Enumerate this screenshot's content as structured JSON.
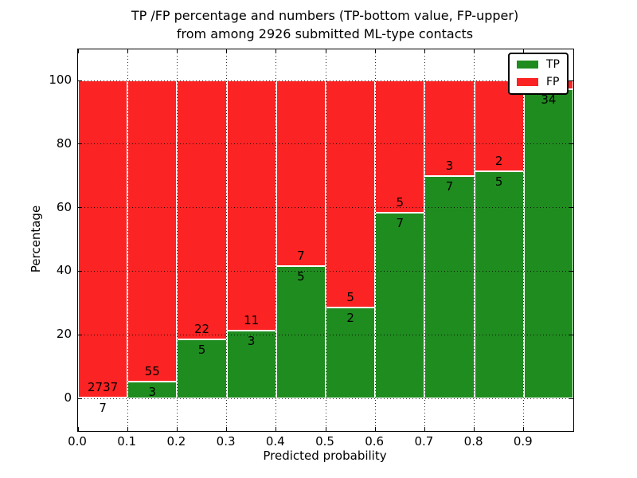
{
  "figure": {
    "title_line1": "TP /FP percentage and numbers (TP-bottom value, FP-upper)",
    "title_line2": "from among 2926 submitted ML-type contacts"
  },
  "chart_data": {
    "type": "bar",
    "stacked": true,
    "normalized_to_percent": 100,
    "title": "TP /FP percentage and numbers (TP-bottom value, FP-upper) from among 2926 submitted ML-type contacts",
    "xlabel": "Predicted probability",
    "ylabel": "Percentage",
    "xlim": [
      0.0,
      1.0
    ],
    "ylim": [
      -10.3,
      109.8
    ],
    "x_tick_labels": [
      "0.0",
      "0.1",
      "0.2",
      "0.3",
      "0.4",
      "0.5",
      "0.6",
      "0.7",
      "0.8",
      "0.9"
    ],
    "y_tick_values": [
      0,
      20,
      40,
      60,
      80,
      100
    ],
    "grid": "dotted black, drawn above bars",
    "total_contacts": 2926,
    "colors": {
      "tp": "#1f8c1f",
      "fp": "#fb2323"
    },
    "legend": {
      "position": "upper right",
      "entries": [
        {
          "label": "TP",
          "color": "#1f8c1f"
        },
        {
          "label": "FP",
          "color": "#fb2323"
        }
      ]
    },
    "bins": [
      {
        "range": [
          0.0,
          0.1
        ],
        "tp": 7,
        "fp": 2737
      },
      {
        "range": [
          0.1,
          0.2
        ],
        "tp": 3,
        "fp": 55
      },
      {
        "range": [
          0.2,
          0.3
        ],
        "tp": 5,
        "fp": 22
      },
      {
        "range": [
          0.3,
          0.4
        ],
        "tp": 3,
        "fp": 11
      },
      {
        "range": [
          0.4,
          0.5
        ],
        "tp": 5,
        "fp": 7
      },
      {
        "range": [
          0.5,
          0.6
        ],
        "tp": 2,
        "fp": 5
      },
      {
        "range": [
          0.6,
          0.7
        ],
        "tp": 7,
        "fp": 5
      },
      {
        "range": [
          0.7,
          0.8
        ],
        "tp": 7,
        "fp": 3
      },
      {
        "range": [
          0.8,
          0.9
        ],
        "tp": 5,
        "fp": 2
      },
      {
        "range": [
          0.9,
          1.0
        ],
        "tp": 34,
        "fp": 1,
        "fp_label_occluded_by_legend": true
      }
    ]
  }
}
